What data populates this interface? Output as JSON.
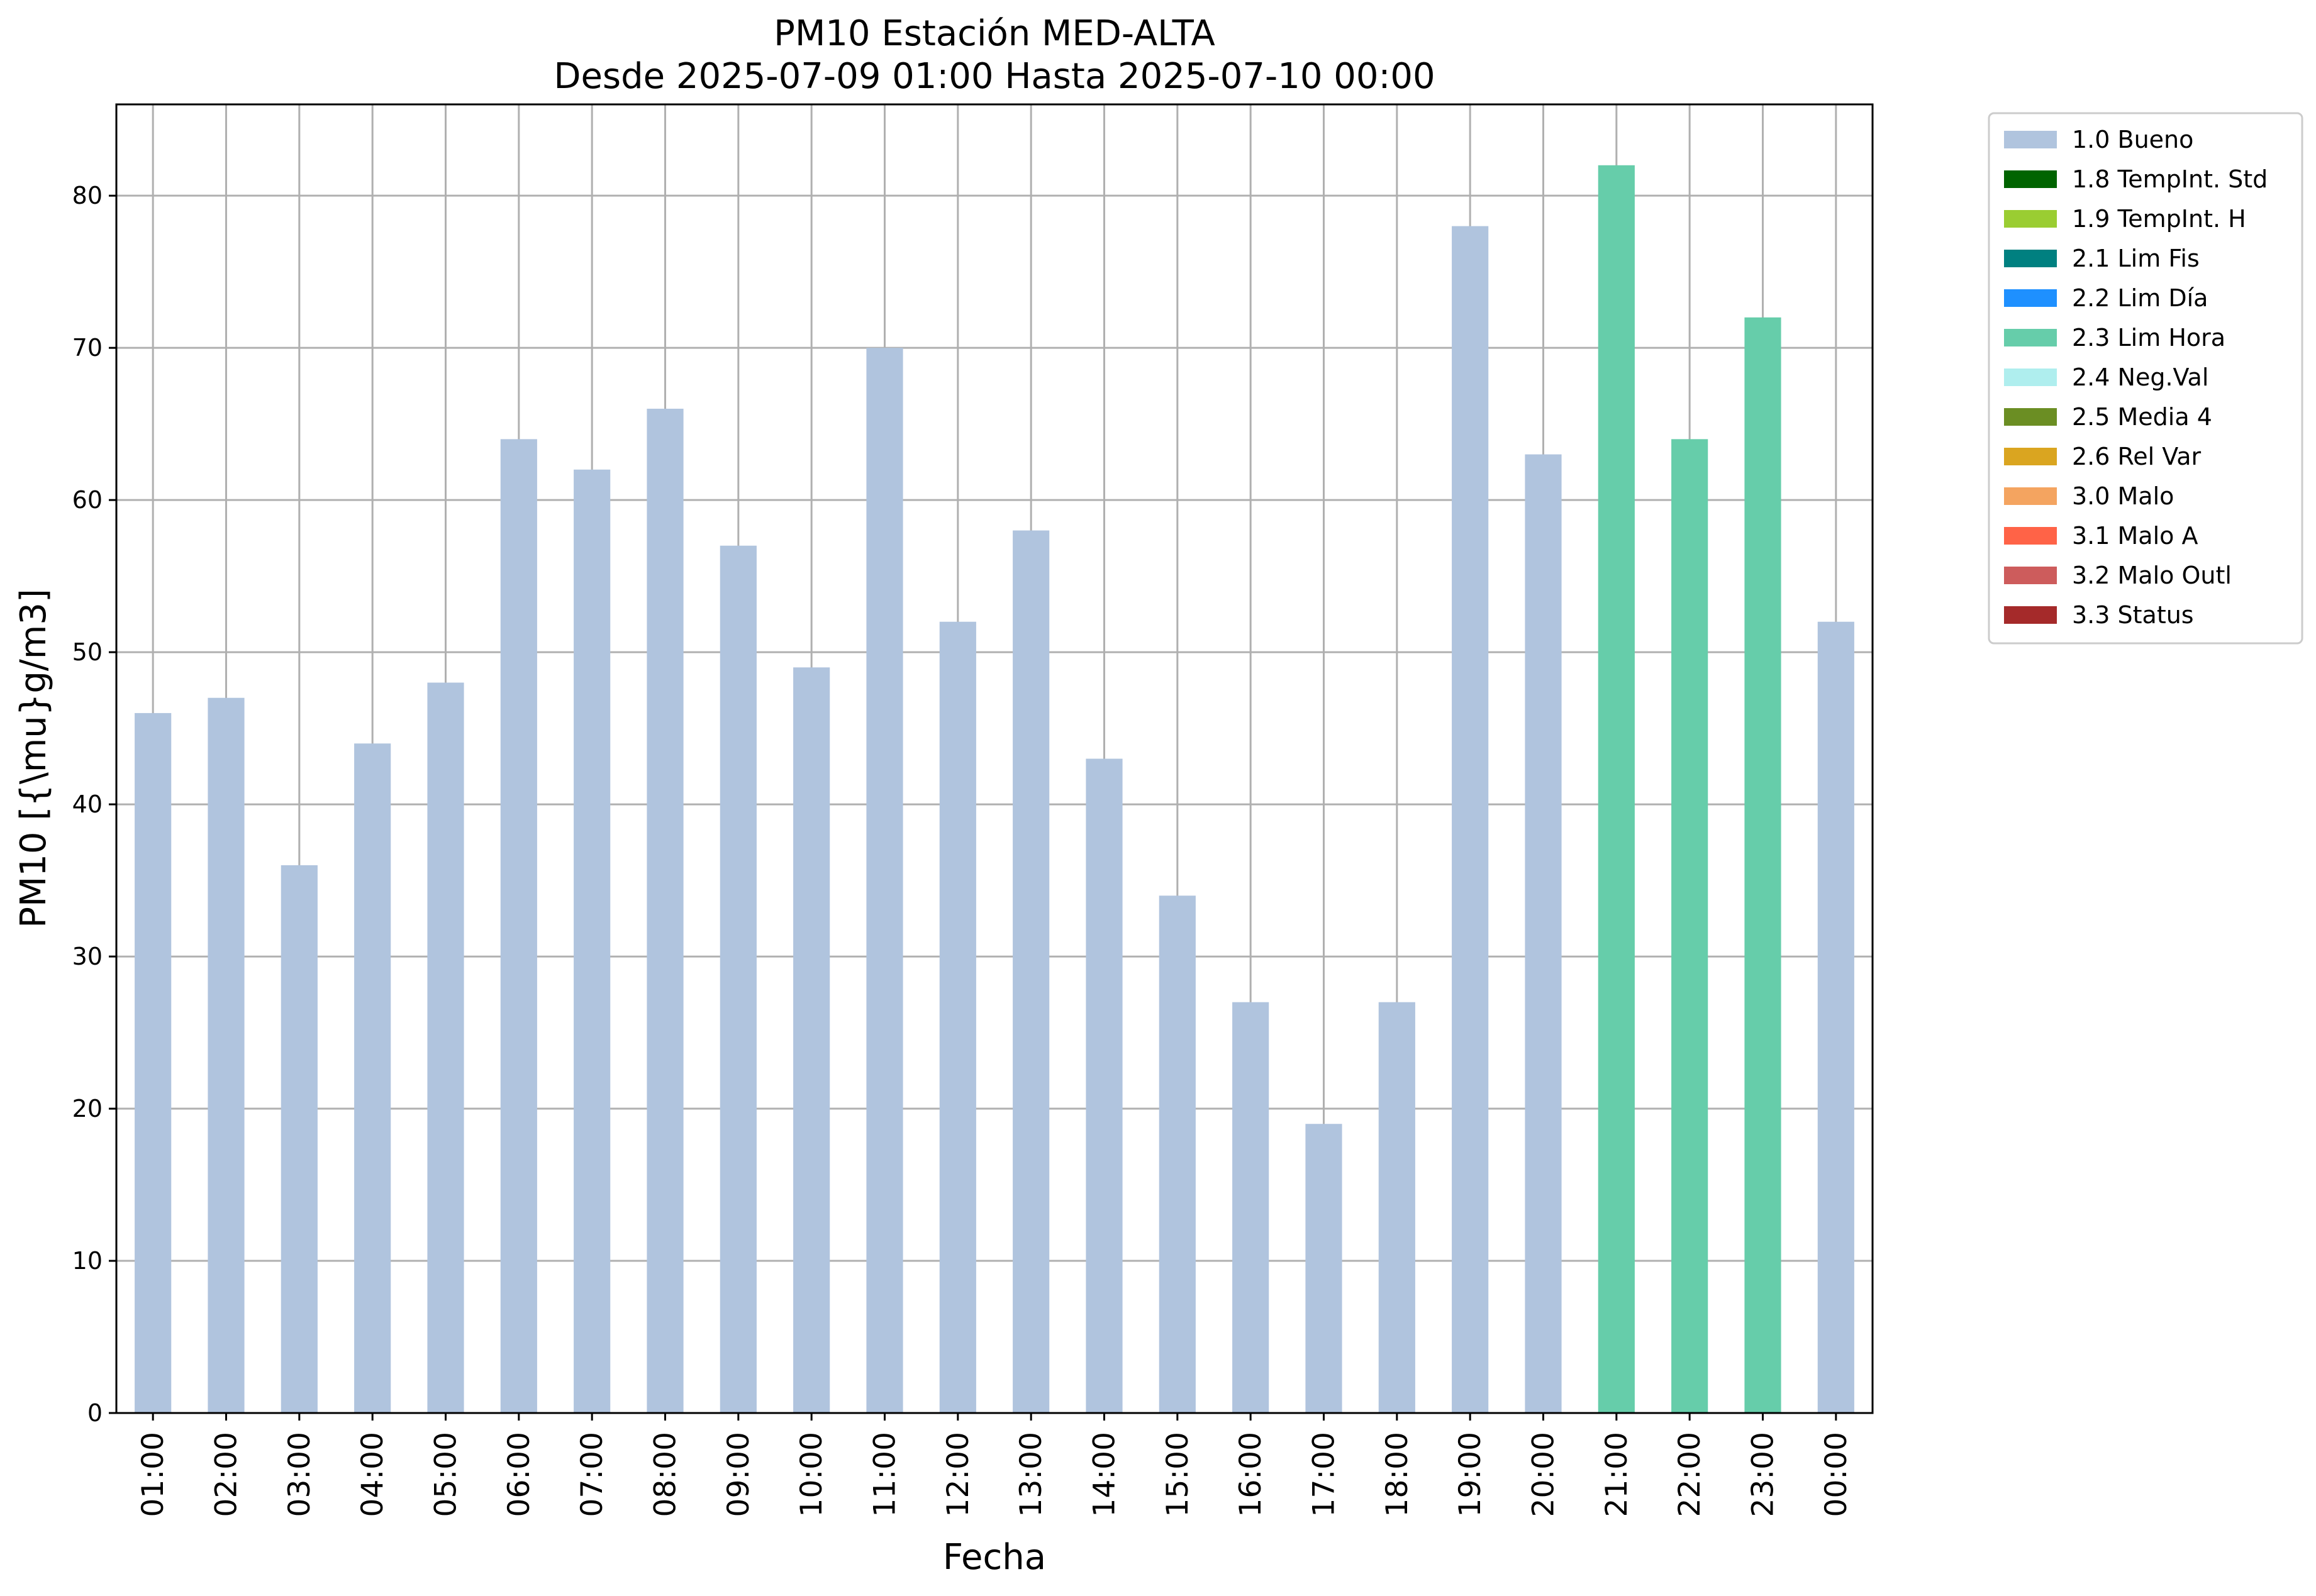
{
  "colors": {
    "grid": "#b0b0b0",
    "axes": "#000000",
    "legend_border": "#cccccc"
  },
  "chart_data": {
    "type": "bar",
    "title": "PM10 Estación MED-ALTA",
    "subtitle": "Desde 2025-07-09 01:00 Hasta 2025-07-10 00:00",
    "xlabel": "Fecha",
    "ylabel": "PM10 [{\\mu}g/m3]",
    "ylim": [
      0,
      86
    ],
    "yticks": [
      0,
      10,
      20,
      30,
      40,
      50,
      60,
      70,
      80
    ],
    "grid": true,
    "legend_placement": "outside-top-right",
    "categories": [
      "01:00",
      "02:00",
      "03:00",
      "04:00",
      "05:00",
      "06:00",
      "07:00",
      "08:00",
      "09:00",
      "10:00",
      "11:00",
      "12:00",
      "13:00",
      "14:00",
      "15:00",
      "16:00",
      "17:00",
      "18:00",
      "19:00",
      "20:00",
      "21:00",
      "22:00",
      "23:00",
      "00:00"
    ],
    "values": [
      46,
      47,
      36,
      44,
      48,
      64,
      62,
      66,
      57,
      49,
      70,
      52,
      58,
      43,
      34,
      27,
      19,
      27,
      78,
      63,
      82,
      64,
      72,
      52
    ],
    "flags": [
      "1.0 Bueno",
      "1.0 Bueno",
      "1.0 Bueno",
      "1.0 Bueno",
      "1.0 Bueno",
      "1.0 Bueno",
      "1.0 Bueno",
      "1.0 Bueno",
      "1.0 Bueno",
      "1.0 Bueno",
      "1.0 Bueno",
      "1.0 Bueno",
      "1.0 Bueno",
      "1.0 Bueno",
      "1.0 Bueno",
      "1.0 Bueno",
      "1.0 Bueno",
      "1.0 Bueno",
      "1.0 Bueno",
      "1.0 Bueno",
      "2.3 Lim Hora",
      "2.3 Lim Hora",
      "2.3 Lim Hora",
      "1.0 Bueno"
    ],
    "legend": [
      {
        "label": "1.0 Bueno",
        "color": "#b0c4de"
      },
      {
        "label": "1.8 TempInt. Std",
        "color": "#006400"
      },
      {
        "label": "1.9 TempInt. H",
        "color": "#9acd32"
      },
      {
        "label": "2.1 Lim Fis",
        "color": "#008080"
      },
      {
        "label": "2.2 Lim Día",
        "color": "#1e90ff"
      },
      {
        "label": "2.3 Lim Hora",
        "color": "#66cdaa"
      },
      {
        "label": "2.4 Neg.Val",
        "color": "#afeeee"
      },
      {
        "label": "2.5 Media 4",
        "color": "#6b8e23"
      },
      {
        "label": "2.6 Rel Var",
        "color": "#daa520"
      },
      {
        "label": "3.0 Malo",
        "color": "#f4a460"
      },
      {
        "label": "3.1 Malo A",
        "color": "#ff6347"
      },
      {
        "label": "3.2 Malo Outl",
        "color": "#cd5c5c"
      },
      {
        "label": "3.3 Status",
        "color": "#a52a2a"
      }
    ]
  }
}
